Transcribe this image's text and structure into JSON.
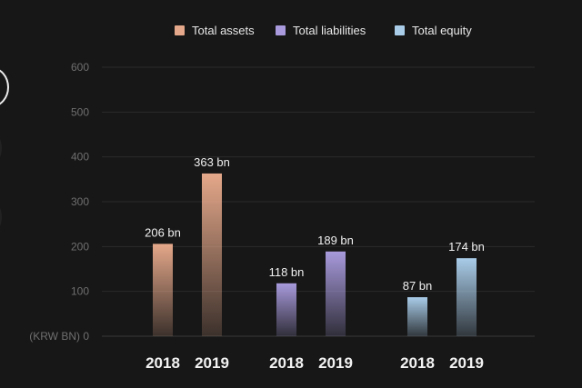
{
  "chart_data": {
    "type": "bar",
    "title": "",
    "xlabel": "",
    "ylabel": "(KRW BN)",
    "ylim": [
      0,
      600
    ],
    "yticks": [
      0,
      100,
      200,
      300,
      400,
      500,
      600
    ],
    "grid": true,
    "legend_position": "top-center",
    "legend": [
      {
        "name": "Total assets",
        "color": "#e5a88a"
      },
      {
        "name": "Total liabilities",
        "color": "#a89adc"
      },
      {
        "name": "Total equity",
        "color": "#a9cce9"
      }
    ],
    "series": [
      {
        "name": "Total assets",
        "categories": [
          "2018",
          "2019"
        ],
        "values": [
          206,
          363
        ],
        "labels": [
          "206 bn",
          "363 bn"
        ],
        "color": "#e5a88a"
      },
      {
        "name": "Total liabilities",
        "categories": [
          "2018",
          "2019"
        ],
        "values": [
          118,
          189
        ],
        "labels": [
          "118 bn",
          "189 bn"
        ],
        "color": "#a89adc"
      },
      {
        "name": "Total equity",
        "categories": [
          "2018",
          "2019"
        ],
        "values": [
          87,
          174
        ],
        "labels": [
          "87 bn",
          "174 bn"
        ],
        "color": "#a9cce9"
      }
    ]
  }
}
